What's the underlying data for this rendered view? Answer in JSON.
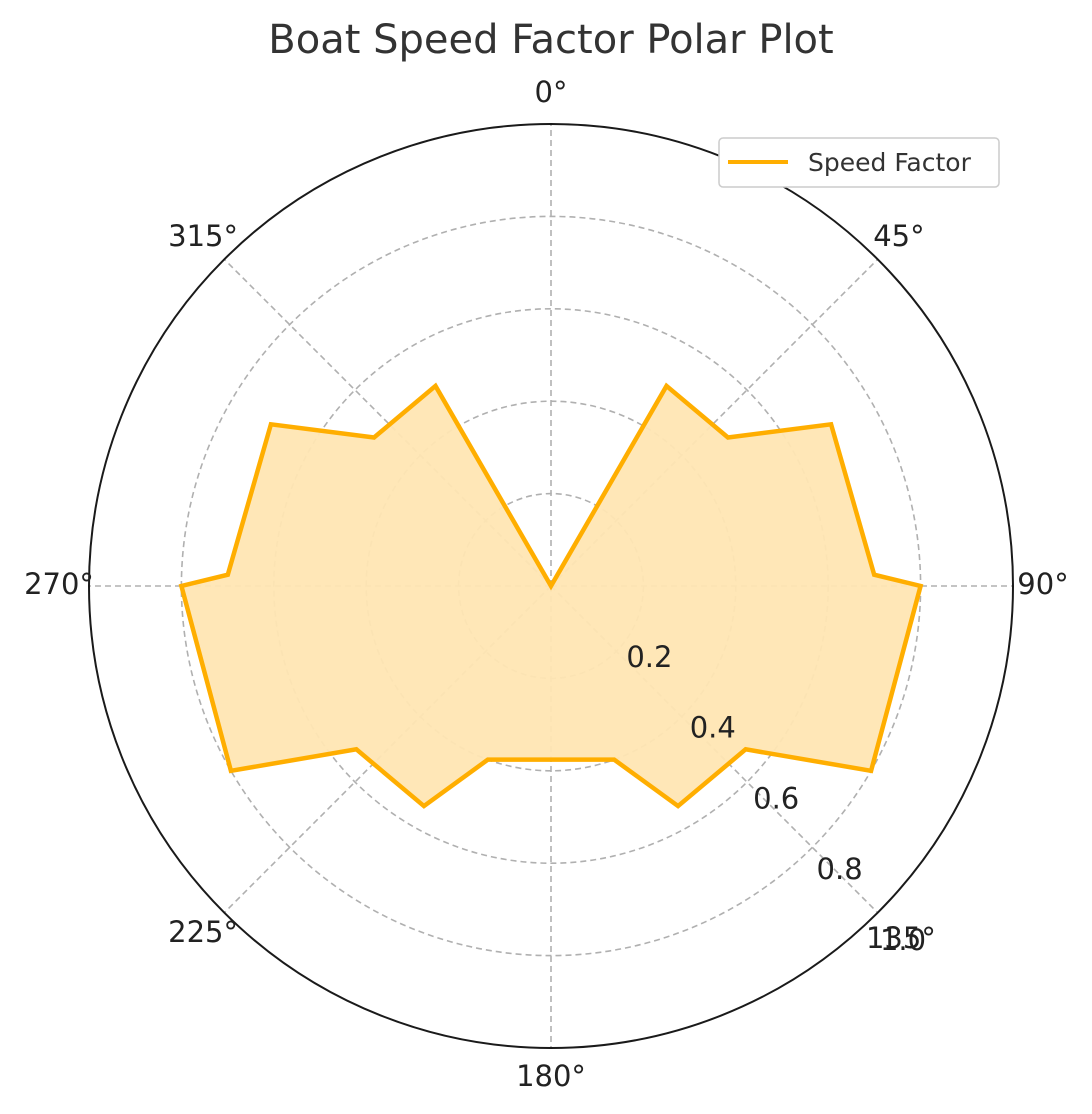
{
  "chart_data": {
    "type": "polar-area",
    "title": "Boat Speed Factor Polar Plot",
    "theta_direction": "clockwise",
    "theta_zero": "top",
    "theta_tick_labels": [
      "0°",
      "45°",
      "90°",
      "135°",
      "180°",
      "225°",
      "270°",
      "315°"
    ],
    "r_tick_labels": [
      "0.2",
      "0.4",
      "0.6",
      "0.8",
      "1.0"
    ],
    "r_ticks": [
      0.2,
      0.4,
      0.6,
      0.8,
      1.0
    ],
    "rlim": [
      0,
      1.0
    ],
    "grid": true,
    "legend_position": "top-right",
    "series": [
      {
        "name": "Speed Factor",
        "color": "#FFAE00",
        "fill": "#FFE6B3",
        "points": [
          {
            "theta": 0,
            "r": 0
          },
          {
            "theta": 30,
            "r": 0.5
          },
          {
            "theta": 50,
            "r": 0.5
          },
          {
            "theta": 60,
            "r": 0.7
          },
          {
            "theta": 88,
            "r": 0.7
          },
          {
            "theta": 90,
            "r": 0.8
          },
          {
            "theta": 120,
            "r": 0.8
          },
          {
            "theta": 130,
            "r": 0.55
          },
          {
            "theta": 150,
            "r": 0.55
          },
          {
            "theta": 160,
            "r": 0.4
          },
          {
            "theta": 200,
            "r": 0.4
          },
          {
            "theta": 210,
            "r": 0.55
          },
          {
            "theta": 230,
            "r": 0.55
          },
          {
            "theta": 240,
            "r": 0.8
          },
          {
            "theta": 270,
            "r": 0.8
          },
          {
            "theta": 272,
            "r": 0.7
          },
          {
            "theta": 300,
            "r": 0.7
          },
          {
            "theta": 310,
            "r": 0.5
          },
          {
            "theta": 330,
            "r": 0.5
          },
          {
            "theta": 360,
            "r": 0
          }
        ]
      }
    ]
  }
}
